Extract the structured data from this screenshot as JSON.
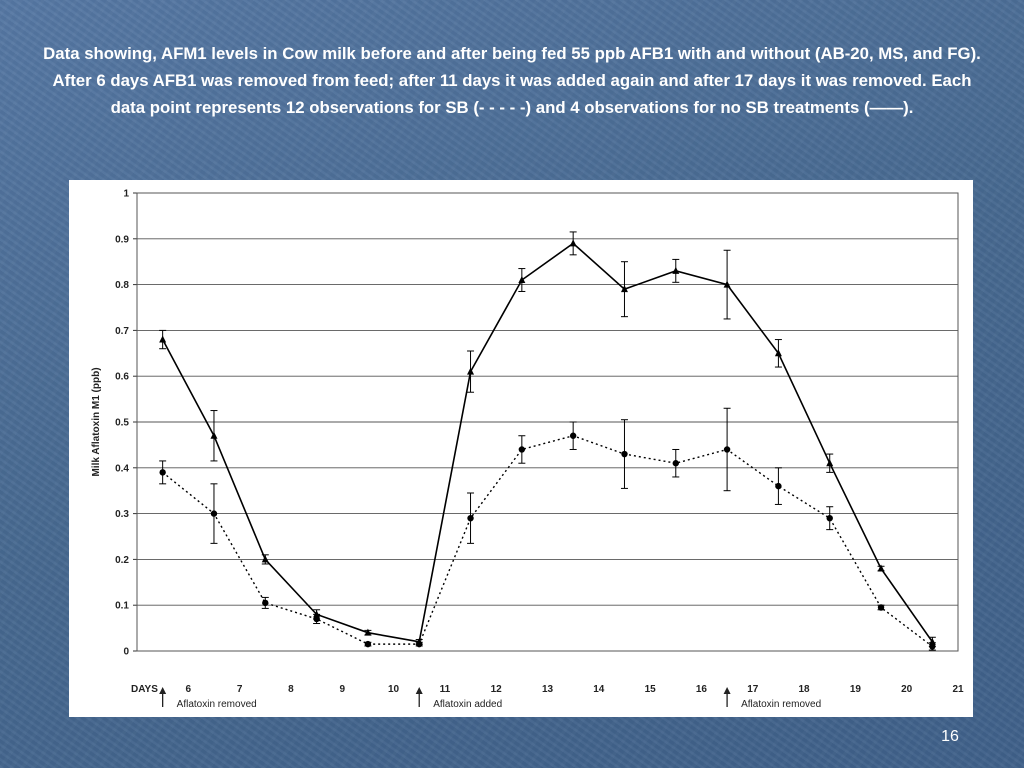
{
  "slide": {
    "title": "Data showing, AFM1 levels in  Cow milk before and after being fed 55 ppb AFB1 with and without (AB-20, MS, and FG). After 6 days AFB1 was removed from feed; after 11 days it was added again and after 17 days it was removed. Each data point represents 12 observations for SB (- - - - -) and 4 observations for no SB treatments (——).",
    "page_number": "16"
  },
  "colors": {
    "background": "#4a6d9a",
    "title_text": "#ffffff",
    "figure_background": "#ffffff",
    "series_color": "#000000"
  },
  "chart_data": {
    "type": "line",
    "title": "",
    "xlabel": "DAYS",
    "ylabel": "Milk Aflatoxin M1 (ppb)",
    "ylim": [
      0,
      1
    ],
    "yticks": [
      "0",
      "0.1",
      "0.2",
      "0.3",
      "0.4",
      "0.5",
      "0.6",
      "0.7",
      "0.8",
      "0.9",
      "1"
    ],
    "xlim": [
      5,
      21
    ],
    "xticks": [
      "6",
      "7",
      "8",
      "9",
      "10",
      "11",
      "12",
      "13",
      "14",
      "15",
      "16",
      "17",
      "18",
      "19",
      "20",
      "21"
    ],
    "grid": "horizontal",
    "legend": "none",
    "series": [
      {
        "line_style": "solid",
        "marker": "triangle",
        "x": [
          5.5,
          6.5,
          7.5,
          8.5,
          9.5,
          10.5,
          11.5,
          12.5,
          13.5,
          14.5,
          15.5,
          16.5,
          17.5,
          18.5,
          19.5,
          20.5
        ],
        "values": [
          0.68,
          0.47,
          0.2,
          0.08,
          0.04,
          0.02,
          0.61,
          0.81,
          0.89,
          0.79,
          0.83,
          0.8,
          0.65,
          0.41,
          0.18,
          0.02
        ],
        "error": [
          0.02,
          0.055,
          0.01,
          0.01,
          0.005,
          0.005,
          0.045,
          0.025,
          0.025,
          0.06,
          0.025,
          0.075,
          0.03,
          0.02,
          0.005,
          0.01
        ]
      },
      {
        "line_style": "dotted",
        "marker": "circle",
        "x": [
          5.5,
          6.5,
          7.5,
          8.5,
          9.5,
          10.5,
          11.5,
          12.5,
          13.5,
          14.5,
          15.5,
          16.5,
          17.5,
          18.5,
          19.5,
          20.5
        ],
        "values": [
          0.39,
          0.3,
          0.105,
          0.07,
          0.015,
          0.015,
          0.29,
          0.44,
          0.47,
          0.43,
          0.41,
          0.44,
          0.36,
          0.29,
          0.095,
          0.01
        ],
        "error": [
          0.025,
          0.065,
          0.012,
          0.01,
          0.004,
          0.004,
          0.055,
          0.03,
          0.03,
          0.075,
          0.03,
          0.09,
          0.04,
          0.025,
          0.005,
          0.008
        ]
      }
    ],
    "annotations": [
      {
        "x": 5.5,
        "text": "Aflatoxin removed"
      },
      {
        "x": 10.5,
        "text": "Aflatoxin added"
      },
      {
        "x": 16.5,
        "text": "Aflatoxin removed"
      }
    ]
  }
}
